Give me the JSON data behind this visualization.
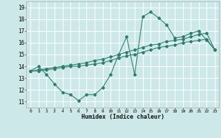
{
  "title": "",
  "xlabel": "Humidex (Indice chaleur)",
  "background_color": "#cde8e8",
  "grid_color": "#ffffff",
  "line_color": "#2d7d6e",
  "xlim": [
    -0.5,
    23.5
  ],
  "ylim": [
    10.5,
    19.5
  ],
  "xticks": [
    0,
    1,
    2,
    3,
    4,
    5,
    6,
    7,
    8,
    9,
    10,
    11,
    12,
    13,
    14,
    15,
    16,
    17,
    18,
    19,
    20,
    21,
    22,
    23
  ],
  "yticks": [
    11,
    12,
    13,
    14,
    15,
    16,
    17,
    18,
    19
  ],
  "series1_x": [
    0,
    1,
    2,
    3,
    4,
    5,
    6,
    7,
    8,
    9,
    10,
    11,
    12,
    13,
    14,
    15,
    16,
    17,
    18,
    19,
    20,
    21,
    22,
    23
  ],
  "series1_y": [
    13.6,
    14.0,
    13.3,
    12.5,
    11.8,
    11.6,
    11.1,
    11.6,
    11.6,
    12.2,
    13.3,
    15.0,
    16.5,
    13.3,
    18.2,
    18.6,
    18.1,
    17.5,
    16.4,
    16.5,
    16.8,
    17.0,
    16.2,
    15.4
  ],
  "series2_x": [
    0,
    1,
    2,
    3,
    4,
    5,
    6,
    7,
    8,
    9,
    10,
    11,
    12,
    13,
    14,
    15,
    16,
    17,
    18,
    19,
    20,
    21,
    22,
    23
  ],
  "series2_y": [
    13.6,
    13.7,
    13.8,
    13.9,
    14.0,
    14.1,
    14.2,
    14.3,
    14.5,
    14.6,
    14.8,
    15.0,
    15.2,
    15.4,
    15.6,
    15.8,
    15.9,
    16.1,
    16.2,
    16.3,
    16.5,
    16.7,
    16.8,
    15.4
  ],
  "series3_x": [
    0,
    1,
    2,
    3,
    4,
    5,
    6,
    7,
    8,
    9,
    10,
    11,
    12,
    13,
    14,
    15,
    16,
    17,
    18,
    19,
    20,
    21,
    22,
    23
  ],
  "series3_y": [
    13.6,
    13.6,
    13.7,
    13.8,
    13.9,
    14.0,
    14.0,
    14.1,
    14.2,
    14.3,
    14.5,
    14.7,
    14.9,
    15.0,
    15.2,
    15.4,
    15.6,
    15.7,
    15.8,
    16.0,
    16.1,
    16.2,
    16.3,
    15.4
  ]
}
